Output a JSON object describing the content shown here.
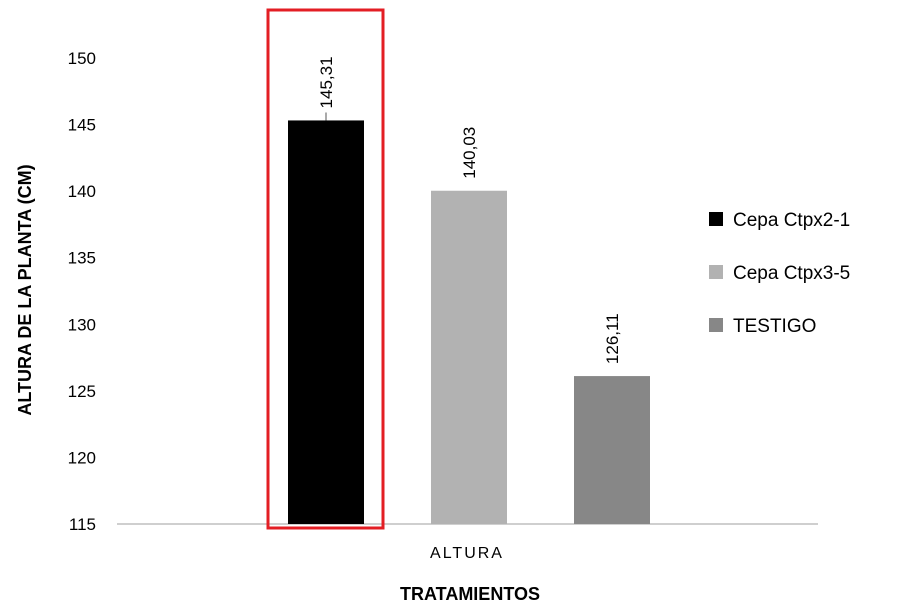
{
  "chart_data": {
    "type": "bar",
    "categories": [
      "ALTURA"
    ],
    "series": [
      {
        "name": "Cepa Ctpx2-1",
        "values": [
          145.31
        ],
        "label": "145,31",
        "color": "#000000",
        "highlighted": true
      },
      {
        "name": "Cepa Ctpx3-5",
        "values": [
          140.03
        ],
        "label": "140,03",
        "color": "#b2b2b2",
        "highlighted": false
      },
      {
        "name": "TESTIGO",
        "values": [
          126.11
        ],
        "label": "126,11",
        "color": "#878787",
        "highlighted": false
      }
    ],
    "xlabel": "TRATAMIENTOS",
    "ylabel": "ALTURA DE LA PLANTA (CM)",
    "ylim": [
      115,
      150
    ],
    "yticks": [
      "115",
      "120",
      "125",
      "130",
      "135",
      "140",
      "145",
      "150"
    ],
    "grid": false,
    "legend_position": "right",
    "highlight_color": "#e31e24"
  }
}
